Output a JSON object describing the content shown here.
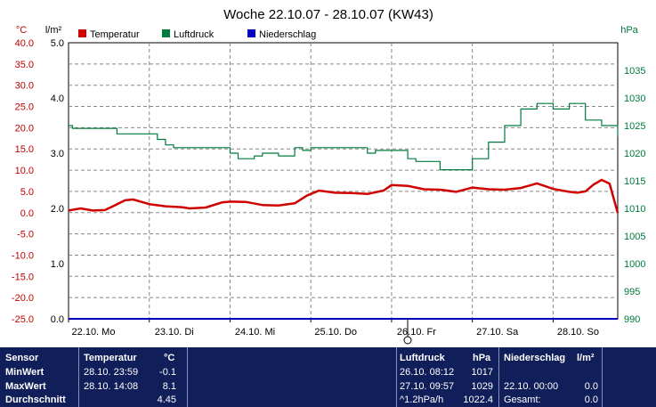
{
  "chart_data": {
    "type": "line",
    "title": "Woche 22.10.07 - 28.10.07 (KW43)",
    "axes": {
      "left_temp": {
        "unit": "°C",
        "min": -25,
        "max": 40,
        "ticks": [
          "40.0",
          "35.0",
          "30.0",
          "25.0",
          "20.0",
          "15.0",
          "10.0",
          "5.0",
          "0.0",
          "-5.0",
          "-10.0",
          "-15.0",
          "-20.0",
          "-25.0"
        ]
      },
      "left_rain": {
        "unit": "l/m²",
        "min": 0,
        "max": 5,
        "ticks": [
          "5.0",
          "4.0",
          "3.0",
          "2.0",
          "1.0",
          "0.0"
        ]
      },
      "right_pressure": {
        "unit": "hPa",
        "min": 990,
        "max": 1040,
        "ticks": [
          "1035",
          "1030",
          "1025",
          "1020",
          "1015",
          "1010",
          "1005",
          "1000",
          "995",
          "990"
        ]
      }
    },
    "x_labels": [
      "22.10.  Mo",
      "23.10.  Di",
      "24.10.  Mi",
      "25.10.  Do",
      "26.10.  Fr",
      "27.10.  Sa",
      "28.10.  So"
    ],
    "legend": [
      "Temperatur",
      "Luftdruck",
      "Niederschlag"
    ],
    "series": [
      {
        "name": "Temperatur",
        "color": "#d00000",
        "axis": "left_temp",
        "x": [
          0,
          0.15,
          0.3,
          0.45,
          0.55,
          0.7,
          0.8,
          1,
          1.2,
          1.4,
          1.5,
          1.7,
          1.9,
          2,
          2.2,
          2.4,
          2.6,
          2.8,
          2.95,
          3.1,
          3.3,
          3.5,
          3.7,
          3.9,
          4,
          4.2,
          4.4,
          4.6,
          4.8,
          5,
          5.2,
          5.4,
          5.6,
          5.8,
          6,
          6.2,
          6.3,
          6.4,
          6.5,
          6.6,
          6.7,
          6.8
        ],
        "y": [
          0.5,
          1,
          0.5,
          0.6,
          1.5,
          2.9,
          3.1,
          2,
          1.5,
          1.3,
          1,
          1.2,
          2.4,
          2.6,
          2.5,
          1.8,
          1.7,
          2.2,
          4,
          5.2,
          4.7,
          4.6,
          4.4,
          5.2,
          6.5,
          6.3,
          5.5,
          5.4,
          4.9,
          5.9,
          5.5,
          5.4,
          5.8,
          6.9,
          5.6,
          4.9,
          4.7,
          5,
          6.6,
          7.7,
          6.8,
          -0.1
        ]
      },
      {
        "name": "Luftdruck",
        "color": "#007a3d",
        "axis": "right_pressure",
        "x": [
          0,
          0.05,
          0.2,
          0.5,
          0.6,
          0.8,
          1,
          1.1,
          1.2,
          1.3,
          1.4,
          1.6,
          1.9,
          2,
          2.1,
          2.2,
          2.3,
          2.4,
          2.6,
          2.8,
          2.9,
          3,
          3.1,
          3.3,
          3.6,
          3.7,
          3.8,
          4,
          4.2,
          4.3,
          4.4,
          4.6,
          4.7,
          4.8,
          5,
          5.2,
          5.4,
          5.6,
          5.8,
          5.9,
          6,
          6.2,
          6.4,
          6.6,
          6.8
        ],
        "y": [
          1025,
          1024.5,
          1024.5,
          1024.5,
          1023.5,
          1023.5,
          1023.5,
          1022.5,
          1021.5,
          1021,
          1021,
          1021,
          1021,
          1020,
          1019,
          1019,
          1019.5,
          1020,
          1019.5,
          1021,
          1020.5,
          1021,
          1021,
          1021,
          1021,
          1020,
          1020.5,
          1020.5,
          1019,
          1018.5,
          1018.5,
          1017,
          1017,
          1017,
          1019,
          1022,
          1025,
          1028,
          1029,
          1029,
          1028,
          1029,
          1026,
          1025,
          1023
        ]
      },
      {
        "name": "Niederschlag",
        "color": "#0000c0",
        "axis": "left_rain",
        "x": [
          0,
          6.8
        ],
        "y": [
          0,
          0
        ]
      }
    ],
    "grid": true
  },
  "table": {
    "headers": {
      "sensor": "Sensor",
      "temperatur": "Temperatur",
      "temp_unit": "°C",
      "luftdruck": "Luftdruck",
      "press_unit": "hPa",
      "niederschlag": "Niederschlag",
      "rain_unit": "l/m²"
    },
    "rows": [
      {
        "label": "MinWert",
        "t_date": "28.10.  23:59",
        "t_val": "-0.1",
        "p_date": "26.10.  08:12",
        "p_val": "1017",
        "r_date": "",
        "r_val": ""
      },
      {
        "label": "MaxWert",
        "t_date": "28.10.  14:08",
        "t_val": "8.1",
        "p_date": "27.10.  09:57",
        "p_val": "1029",
        "r_date": "22.10.  00:00",
        "r_val": "0.0"
      },
      {
        "label": "Durchschnitt",
        "t_date": "",
        "t_val": "4.45",
        "p_date": "^1.2hPa/h",
        "p_val": "1022.4",
        "r_date": "Gesamt:",
        "r_val": "0.0"
      }
    ]
  }
}
